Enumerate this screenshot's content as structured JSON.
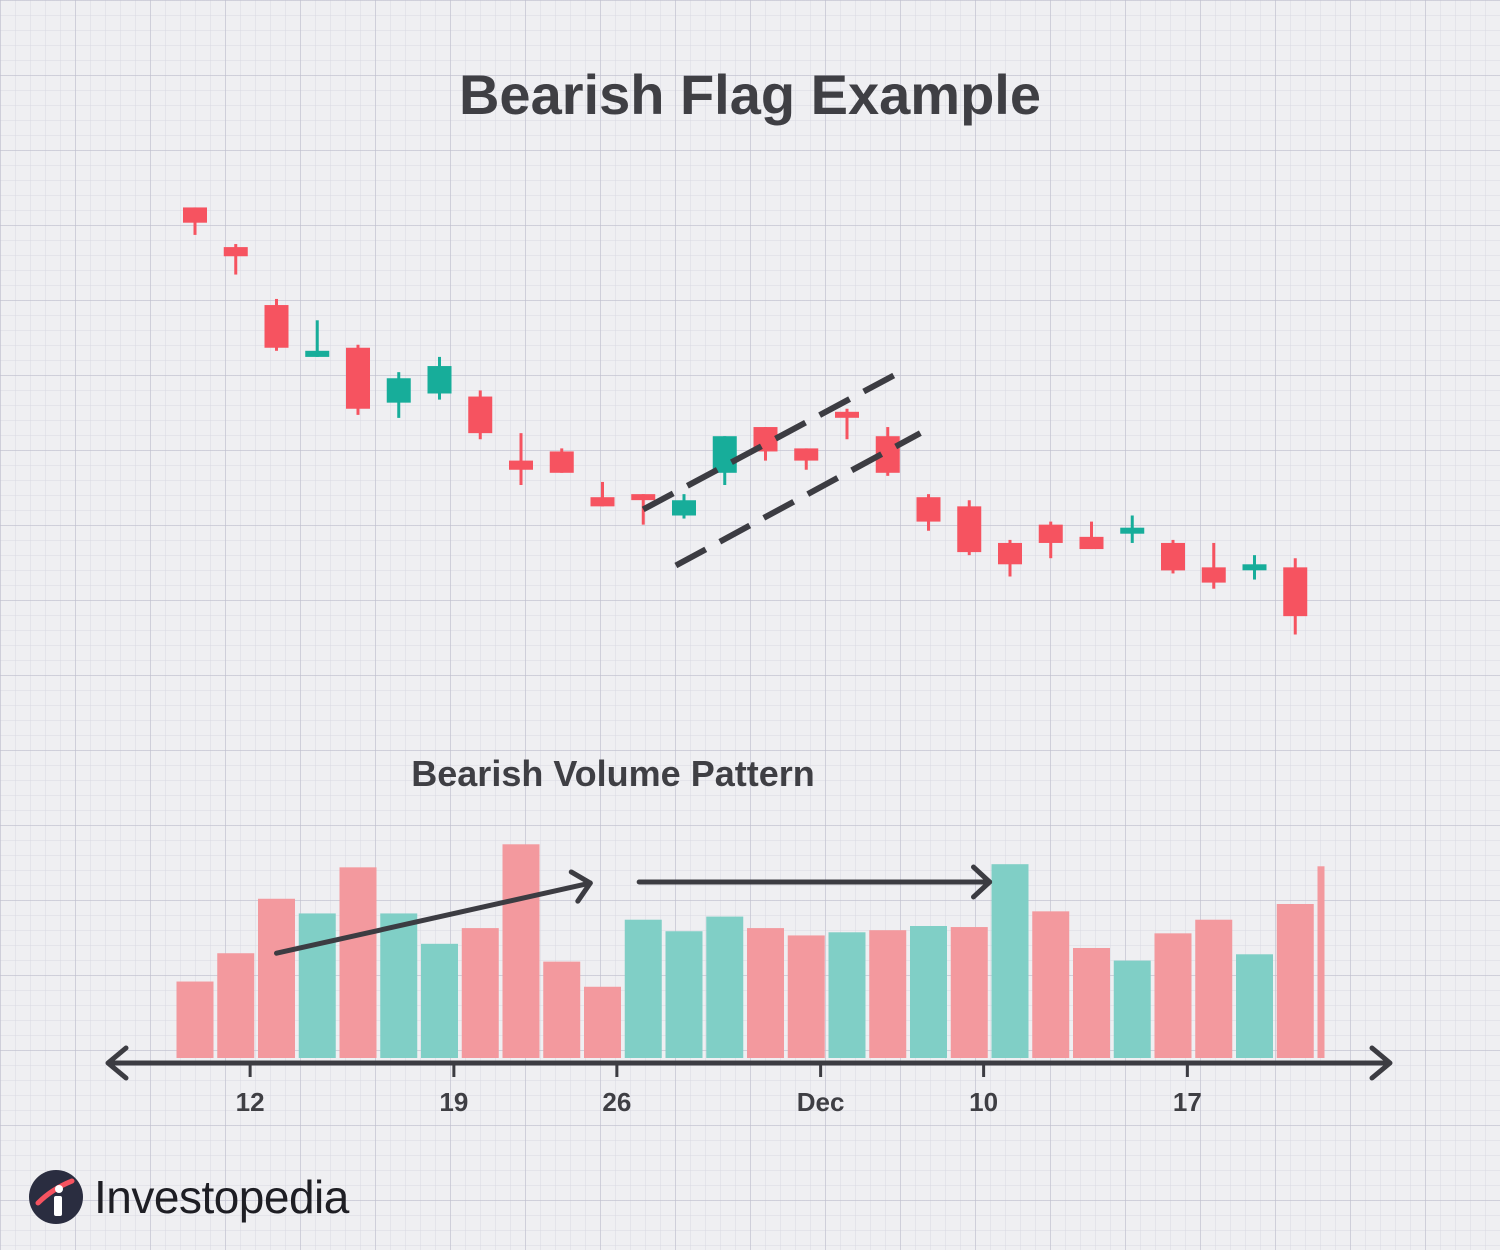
{
  "colors": {
    "bear": "#f65360",
    "bull": "#17ad9a",
    "bear_volume": "#f3999e",
    "bull_volume": "#80cfc6",
    "annotation": "#3c3c42",
    "text": "#3f3f44",
    "brand_dark": "#2a2d40"
  },
  "brand": {
    "name": "Investopedia",
    "icon": "investopedia-logo-icon"
  },
  "chart_data": {
    "type": "candlestick",
    "title": "Bearish Flag Example",
    "volume_title": "Bearish Volume Pattern",
    "x_tick_labels": [
      {
        "index": 2,
        "label": "12"
      },
      {
        "index": 7,
        "label": "19"
      },
      {
        "index": 11,
        "label": "26"
      },
      {
        "index": 16,
        "label": "Dec"
      },
      {
        "index": 20,
        "label": "10"
      },
      {
        "index": 25,
        "label": "17"
      }
    ],
    "price_ylim": [
      0,
      100
    ],
    "candles": [
      {
        "open": 95.5,
        "high": 95.5,
        "low": 91.0,
        "close": 93.0
      },
      {
        "open": 89.0,
        "high": 89.5,
        "low": 84.5,
        "close": 87.5
      },
      {
        "open": 79.5,
        "high": 80.5,
        "low": 72.0,
        "close": 72.5
      },
      {
        "open": 71.0,
        "high": 77.0,
        "low": 71.0,
        "close": 72.0
      },
      {
        "open": 72.5,
        "high": 73.0,
        "low": 61.5,
        "close": 62.5
      },
      {
        "open": 63.5,
        "high": 68.5,
        "low": 61.0,
        "close": 67.5
      },
      {
        "open": 65.0,
        "high": 71.0,
        "low": 64.0,
        "close": 69.5
      },
      {
        "open": 64.5,
        "high": 65.5,
        "low": 57.5,
        "close": 58.5
      },
      {
        "open": 54.0,
        "high": 58.5,
        "low": 50.0,
        "close": 52.5
      },
      {
        "open": 55.5,
        "high": 56.0,
        "low": 52.0,
        "close": 52.0
      },
      {
        "open": 48.0,
        "high": 50.5,
        "low": 46.5,
        "close": 46.5
      },
      {
        "open": 48.5,
        "high": 48.5,
        "low": 43.5,
        "close": 48.0
      },
      {
        "open": 45.0,
        "high": 48.5,
        "low": 44.5,
        "close": 47.5
      },
      {
        "open": 52.0,
        "high": 58.0,
        "low": 50.0,
        "close": 58.0
      },
      {
        "open": 59.5,
        "high": 59.5,
        "low": 54.0,
        "close": 55.5
      },
      {
        "open": 56.0,
        "high": 56.0,
        "low": 52.5,
        "close": 54.0
      },
      {
        "open": 62.0,
        "high": 62.5,
        "low": 57.5,
        "close": 61.5
      },
      {
        "open": 58.0,
        "high": 59.5,
        "low": 51.5,
        "close": 52.0
      },
      {
        "open": 48.0,
        "high": 48.5,
        "low": 42.5,
        "close": 44.0
      },
      {
        "open": 46.5,
        "high": 47.5,
        "low": 38.5,
        "close": 39.0
      },
      {
        "open": 40.5,
        "high": 41.0,
        "low": 35.0,
        "close": 37.0
      },
      {
        "open": 43.5,
        "high": 44.0,
        "low": 38.0,
        "close": 40.5
      },
      {
        "open": 41.5,
        "high": 44.0,
        "low": 39.5,
        "close": 39.5
      },
      {
        "open": 42.5,
        "high": 45.0,
        "low": 40.5,
        "close": 43.0
      },
      {
        "open": 40.5,
        "high": 41.0,
        "low": 35.5,
        "close": 36.0
      },
      {
        "open": 36.5,
        "high": 40.5,
        "low": 33.0,
        "close": 34.0
      },
      {
        "open": 36.5,
        "high": 38.5,
        "low": 34.5,
        "close": 37.0
      },
      {
        "open": 36.5,
        "high": 38.0,
        "low": 25.5,
        "close": 28.5
      }
    ],
    "volume_ylim": [
      0,
      210
    ],
    "volume": [
      {
        "value": 73,
        "direction": "bear"
      },
      {
        "value": 100,
        "direction": "bear"
      },
      {
        "value": 152,
        "direction": "bear"
      },
      {
        "value": 138,
        "direction": "bull"
      },
      {
        "value": 182,
        "direction": "bear"
      },
      {
        "value": 138,
        "direction": "bull"
      },
      {
        "value": 109,
        "direction": "bull"
      },
      {
        "value": 124,
        "direction": "bear"
      },
      {
        "value": 204,
        "direction": "bear"
      },
      {
        "value": 92,
        "direction": "bear"
      },
      {
        "value": 68,
        "direction": "bear"
      },
      {
        "value": 132,
        "direction": "bull"
      },
      {
        "value": 121,
        "direction": "bull"
      },
      {
        "value": 135,
        "direction": "bull"
      },
      {
        "value": 124,
        "direction": "bear"
      },
      {
        "value": 117,
        "direction": "bear"
      },
      {
        "value": 120,
        "direction": "bull"
      },
      {
        "value": 122,
        "direction": "bear"
      },
      {
        "value": 126,
        "direction": "bull"
      },
      {
        "value": 125,
        "direction": "bear"
      },
      {
        "value": 185,
        "direction": "bull"
      },
      {
        "value": 140,
        "direction": "bear"
      },
      {
        "value": 105,
        "direction": "bear"
      },
      {
        "value": 93,
        "direction": "bull"
      },
      {
        "value": 119,
        "direction": "bear"
      },
      {
        "value": 132,
        "direction": "bear"
      },
      {
        "value": 99,
        "direction": "bull"
      },
      {
        "value": 147,
        "direction": "bear"
      }
    ],
    "flag_channel": {
      "upper": [
        {
          "x": 11.0,
          "y": 46.0
        },
        {
          "x": 17.3,
          "y": 68.5
        }
      ],
      "lower": [
        {
          "x": 11.8,
          "y": 36.8
        },
        {
          "x": 17.8,
          "y": 58.5
        }
      ]
    },
    "volume_arrows": [
      {
        "from": {
          "x": 2.0,
          "y": 100
        },
        "to": {
          "x": 9.7,
          "y": 167
        }
      },
      {
        "from": {
          "x": 10.9,
          "y": 168
        },
        "to": {
          "x": 19.5,
          "y": 168
        }
      }
    ]
  }
}
